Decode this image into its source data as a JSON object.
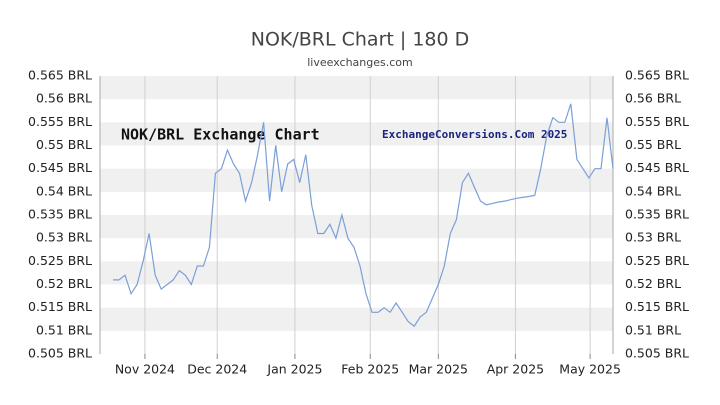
{
  "chart_data": {
    "type": "line",
    "title": "NOK/BRL Chart | 180 D",
    "subtitle": "liveexchanges.com",
    "annotations": [
      "NOK/BRL Exchange Chart",
      "ExchangeConversions.Com 2025"
    ],
    "series": [
      {
        "name": "NOK/BRL",
        "color": "#7b9fd8",
        "values": [
          0.521,
          0.521,
          0.522,
          0.518,
          0.52,
          0.525,
          0.531,
          0.522,
          0.519,
          0.52,
          0.521,
          0.523,
          0.522,
          0.52,
          0.524,
          0.524,
          0.528,
          0.544,
          0.545,
          0.549,
          0.546,
          0.544,
          0.538,
          0.542,
          0.548,
          0.555,
          0.538,
          0.55,
          0.54,
          0.546,
          0.547,
          0.542,
          0.548,
          0.537,
          0.531,
          0.531,
          0.533,
          0.53,
          0.535,
          0.53,
          0.528,
          0.524,
          0.518,
          0.514,
          0.514,
          0.515,
          0.514,
          0.516,
          0.514,
          0.512,
          0.511,
          0.513,
          0.514,
          0.517,
          0.52,
          0.524,
          0.531,
          0.534,
          0.542,
          0.544,
          0.541,
          0.538,
          0.5372,
          0.5375,
          0.5378,
          0.538,
          0.5383,
          0.5386,
          0.5388,
          0.539,
          0.5392,
          0.545,
          0.552,
          0.556,
          0.555,
          0.555,
          0.559,
          0.547,
          0.545,
          0.543,
          0.545,
          0.545,
          0.556,
          0.545
        ]
      }
    ],
    "xlim": [
      0,
      83
    ],
    "xticks": [
      {
        "value": 5.3,
        "label": "Nov 2024"
      },
      {
        "value": 17.3,
        "label": "Dec 2024"
      },
      {
        "value": 30.2,
        "label": "Jan 2025"
      },
      {
        "value": 42.7,
        "label": "Feb 2025"
      },
      {
        "value": 54,
        "label": "Mar 2025"
      },
      {
        "value": 66.8,
        "label": "Apr 2025"
      },
      {
        "value": 79.2,
        "label": "May 2025"
      }
    ],
    "ylim": [
      0.505,
      0.565
    ],
    "yticks": [
      {
        "value": 0.505,
        "label": "0.505 BRL"
      },
      {
        "value": 0.51,
        "label": "0.51 BRL"
      },
      {
        "value": 0.515,
        "label": "0.515 BRL"
      },
      {
        "value": 0.52,
        "label": "0.52 BRL"
      },
      {
        "value": 0.525,
        "label": "0.525 BRL"
      },
      {
        "value": 0.53,
        "label": "0.53 BRL"
      },
      {
        "value": 0.535,
        "label": "0.535 BRL"
      },
      {
        "value": 0.54,
        "label": "0.54 BRL"
      },
      {
        "value": 0.545,
        "label": "0.545 BRL"
      },
      {
        "value": 0.55,
        "label": "0.55 BRL"
      },
      {
        "value": 0.555,
        "label": "0.555 BRL"
      },
      {
        "value": 0.56,
        "label": "0.56 BRL"
      },
      {
        "value": 0.565,
        "label": "0.565 BRL"
      }
    ],
    "grid": true
  }
}
